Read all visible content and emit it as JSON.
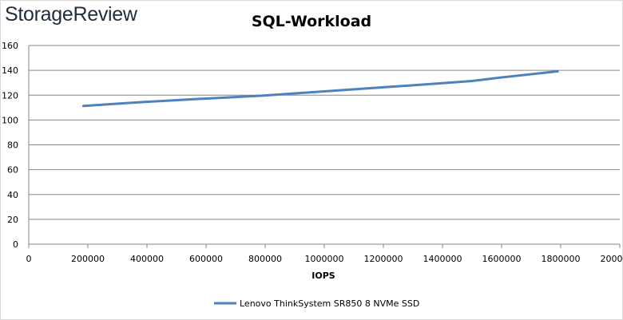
{
  "logo": {
    "text": "StorageReview"
  },
  "chart_data": {
    "type": "line",
    "title": "SQL-Workload",
    "xlabel": "IOPS",
    "ylabel": "",
    "xlim": [
      0,
      2000000
    ],
    "ylim": [
      0,
      160
    ],
    "xticks": [
      0,
      200000,
      400000,
      600000,
      800000,
      1000000,
      1200000,
      1400000,
      1600000,
      1800000,
      2000000
    ],
    "yticks": [
      0,
      20,
      40,
      60,
      80,
      100,
      120,
      140,
      160
    ],
    "grid": "horizontal",
    "legend_position": "bottom",
    "series": [
      {
        "name": "Lenovo ThinkSystem SR850 8 NVMe SSD",
        "color": "#4f81bd",
        "x": [
          185000,
          380000,
          580000,
          790000,
          990000,
          1180000,
          1380000,
          1500000,
          1600000,
          1790000
        ],
        "y": [
          111.3,
          114.4,
          117.0,
          119.6,
          122.9,
          126.0,
          129.3,
          131.4,
          134.3,
          139.2
        ]
      }
    ]
  }
}
